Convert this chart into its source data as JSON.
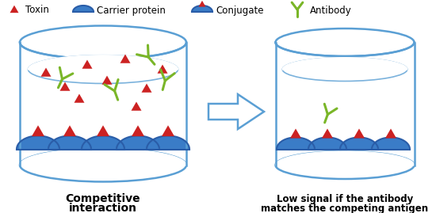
{
  "figsize": [
    5.5,
    2.69
  ],
  "dpi": 100,
  "bg_color": "#ffffff",
  "toxin_color": "#cc2222",
  "carrier_color": "#3a7cc7",
  "carrier_dark": "#2a5da8",
  "antibody_color": "#7ab628",
  "vessel_color": "#5a9fd4",
  "text_color": "#111111",
  "left_label_line1": "Competitive",
  "left_label_line2": "interaction",
  "right_label_line1": "Low signal if the antibody",
  "right_label_line2": "matches the competing antigen",
  "legend_toxin": "Toxin",
  "legend_carrier": "Carrier protein",
  "legend_conjugate": "Conjugate",
  "legend_antibody": "Antibody"
}
